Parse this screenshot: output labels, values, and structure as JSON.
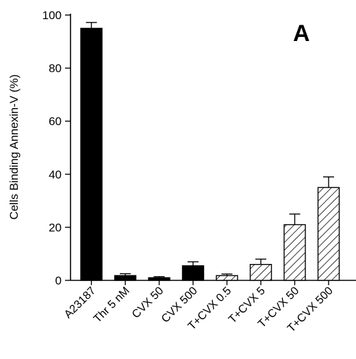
{
  "chart_data": {
    "type": "bar",
    "panel_label": "A",
    "ylabel": "Cells Binding Annexin-V   (%)",
    "ylim": [
      0,
      100
    ],
    "yticks": [
      0,
      20,
      40,
      60,
      80,
      100
    ],
    "ytick_labels": [
      "0",
      "20",
      "40",
      "60",
      "80",
      "100"
    ],
    "categories": [
      "A23187",
      "Thr 5 nM",
      "CVX 50",
      "CVX 500",
      "T+CVX 0.5",
      "T+CVX 5",
      "T+CVX 50",
      "T+CVX 500"
    ],
    "values": [
      95,
      1.8,
      1.0,
      5.5,
      1.8,
      6.0,
      21.0,
      35.0
    ],
    "errors": [
      2.2,
      0.7,
      0.4,
      1.5,
      0.6,
      2.0,
      4.0,
      4.0
    ],
    "fills": [
      "solid",
      "solid",
      "solid",
      "solid",
      "hatched",
      "hatched",
      "hatched",
      "hatched"
    ],
    "colors": {
      "bar": "#000000",
      "background": "#ffffff"
    }
  }
}
